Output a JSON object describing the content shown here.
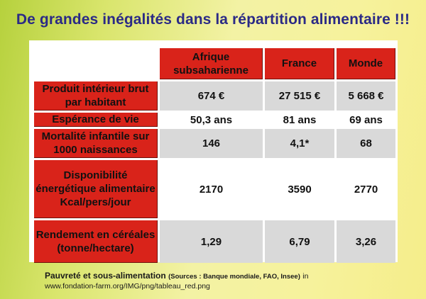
{
  "title": "De grandes inégalités dans la répartition alimentaire !!!",
  "table": {
    "columns": [
      "Afrique subsaharienne",
      "France",
      "Monde"
    ],
    "rows": [
      {
        "label": "Produit intérieur brut par habitant",
        "values": [
          "674 €",
          "27 515 €",
          "5 668 €"
        ]
      },
      {
        "label": "Espérance de vie",
        "values": [
          "50,3 ans",
          "81 ans",
          "69 ans"
        ]
      },
      {
        "label": "Mortalité infantile sur 1000 naissances",
        "values": [
          "146",
          "4,1*",
          "68"
        ]
      },
      {
        "label": "Disponibilité énergétique alimentaire Kcal/pers/jour",
        "values": [
          "2170",
          "3590",
          "2770"
        ]
      },
      {
        "label": "Rendement en céréales (tonne/hectare)",
        "values": [
          "1,29",
          "6,79",
          "3,26"
        ]
      }
    ]
  },
  "caption": {
    "main": "Pauvreté et sous-alimentation",
    "sources": "(Sources : Banque mondiale, FAO, Insee)",
    "in": "in",
    "url": "www.fondation-farm.org/IMG/png/tableau_red.png"
  },
  "colors": {
    "title": "#2b2a86",
    "header_red": "#d9231a",
    "shade": "#d9d9d9"
  }
}
